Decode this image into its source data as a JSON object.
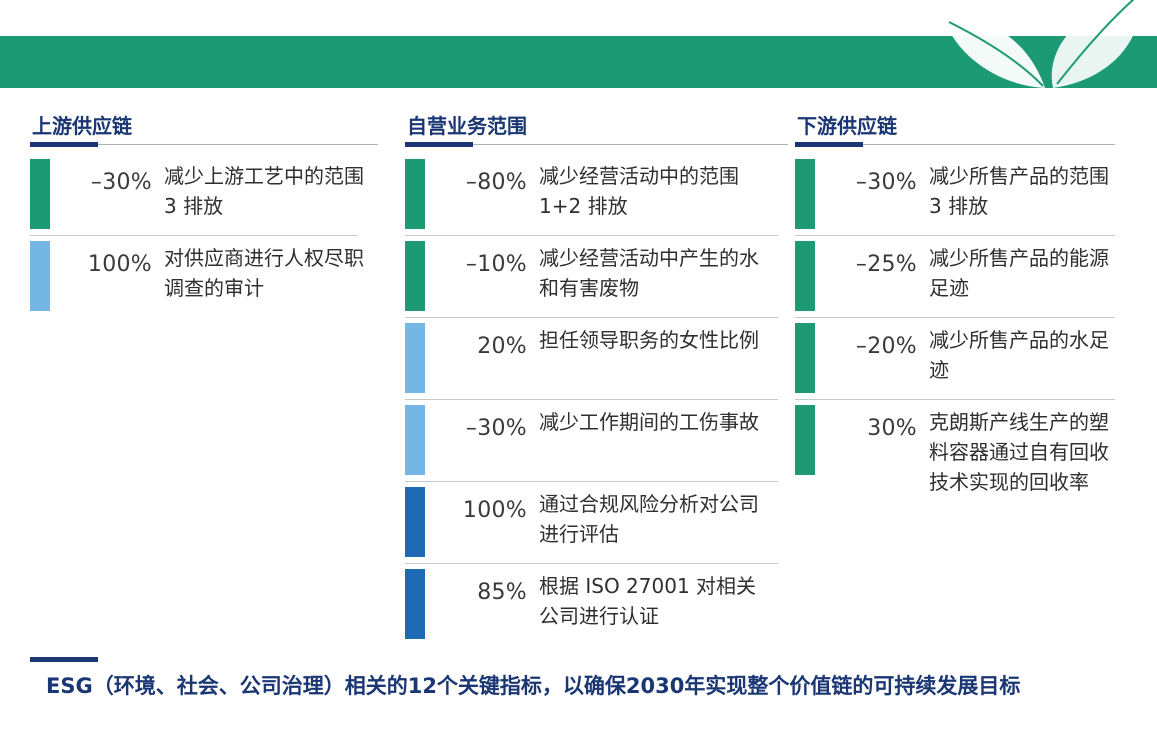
{
  "colors": {
    "banner": "#1b9a74",
    "navy": "#1a3673",
    "green": "#1b9a74",
    "light_blue": "#74b6e4",
    "dark_blue": "#1e6ab5"
  },
  "decor": {
    "leaf_icon": "leaf-icon"
  },
  "upstream": {
    "title": "上游供应链",
    "items": [
      {
        "value": "–30%",
        "text": "减少上游工艺中的范围 3 排放",
        "color": "green"
      },
      {
        "value": "100%",
        "text": "对供应商进行人权尽职调查的审计",
        "color": "light_blue"
      }
    ]
  },
  "operations": {
    "title": "自营业务范围",
    "items": [
      {
        "value": "–80%",
        "text": "减少经营活动中的范围 1+2 排放",
        "color": "green"
      },
      {
        "value": "–10%",
        "text": "减少经营活动中产生的水和有害废物",
        "color": "green"
      },
      {
        "value": "20%",
        "text": "担任领导职务的女性比例",
        "color": "light_blue"
      },
      {
        "value": "–30%",
        "text": "减少工作期间的工伤事故",
        "color": "light_blue"
      },
      {
        "value": "100%",
        "text": "通过合规风险分析对公司进行评估",
        "color": "dark_blue"
      },
      {
        "value": "85%",
        "text": "根据 ISO 27001 对相关公司进行认证",
        "color": "dark_blue"
      }
    ]
  },
  "downstream": {
    "title": "下游供应链",
    "items": [
      {
        "value": "–30%",
        "text": "减少所售产品的范围 3 排放",
        "color": "green"
      },
      {
        "value": "–25%",
        "text": "减少所售产品的能源足迹",
        "color": "green"
      },
      {
        "value": "–20%",
        "text": "减少所售产品的水足迹",
        "color": "green"
      },
      {
        "value": "30%",
        "text": "克朗斯产线生产的塑料容器通过自有回收技术实现的回收率",
        "color": "green"
      }
    ]
  },
  "footer": {
    "text": "ESG（环境、社会、公司治理）相关的12个关键指标，以确保2030年实现整个价值链的可持续发展目标"
  }
}
